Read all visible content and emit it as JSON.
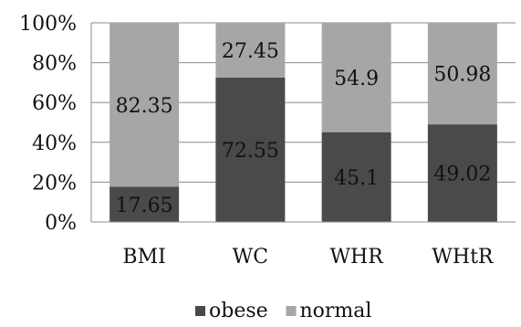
{
  "chart_data": {
    "type": "bar",
    "stacked": true,
    "percent": true,
    "categories": [
      "BMI",
      "WC",
      "WHR",
      "WHtR"
    ],
    "series": [
      {
        "name": "obese",
        "values": [
          17.65,
          72.55,
          45.1,
          49.02
        ],
        "labels": [
          "17.65",
          "72.55",
          "45.1",
          "49.02"
        ],
        "color": "#4a4a4a"
      },
      {
        "name": "normal",
        "values": [
          82.35,
          27.45,
          54.9,
          50.98
        ],
        "labels": [
          "82.35",
          "27.45",
          "54.9",
          "50.98"
        ],
        "color": "#a6a6a6"
      }
    ],
    "ylim": [
      0,
      100
    ],
    "yticks": [
      0,
      20,
      40,
      60,
      80,
      100
    ],
    "ytick_labels": [
      "0%",
      "20%",
      "40%",
      "60%",
      "80%",
      "100%"
    ],
    "grid": true,
    "legend": "bottom",
    "title": "",
    "xlabel": "",
    "ylabel": ""
  }
}
